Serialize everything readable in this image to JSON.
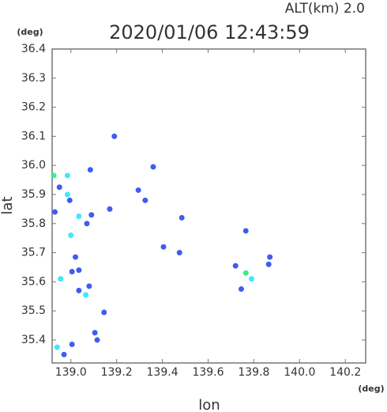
{
  "chart_data": {
    "type": "scatter",
    "title": "2020/01/06 12:43:59",
    "annotation": "ALT(km) 2.0",
    "x_unit": "(deg)",
    "y_unit": "(deg)",
    "x_label": "lon",
    "y_label": "lat",
    "xlim": [
      138.918,
      140.289
    ],
    "ylim": [
      35.321,
      36.4
    ],
    "xticks": [
      {
        "value": 139.0,
        "label": "139.0"
      },
      139.2,
      139.4,
      139.6,
      139.8,
      {
        "value": 140.0,
        "label": "140.0"
      },
      140.2
    ],
    "yticks": [
      {
        "value": 35.4,
        "label": "35.4"
      },
      35.5,
      35.6,
      35.7,
      35.8,
      35.9,
      {
        "value": 36.0,
        "label": "36.0"
      },
      36.1,
      36.2,
      36.3,
      36.4
    ],
    "series": [
      {
        "color": "#3f5cf0",
        "x": [
          139.19,
          139.36,
          139.085,
          138.95,
          138.995,
          138.93,
          139.09,
          139.17,
          139.07,
          139.295,
          139.325,
          139.485,
          139.405,
          139.02,
          139.005,
          139.035,
          139.08,
          139.035,
          139.145,
          139.105,
          139.115,
          139.005,
          138.97,
          139.765,
          139.865,
          139.87,
          139.72,
          139.745,
          139.475
        ],
        "y": [
          36.1,
          35.995,
          35.985,
          35.925,
          35.88,
          35.84,
          35.83,
          35.85,
          35.8,
          35.915,
          35.88,
          35.82,
          35.72,
          35.685,
          35.635,
          35.64,
          35.585,
          35.57,
          35.495,
          35.425,
          35.4,
          35.385,
          35.35,
          35.775,
          35.66,
          35.685,
          35.655,
          35.575,
          35.7
        ]
      },
      {
        "color": "#3fe8ff",
        "x": [
          138.985,
          138.985,
          139.035,
          139.0,
          138.955,
          139.065,
          138.94,
          139.79
        ],
        "y": [
          35.965,
          35.9,
          35.825,
          35.76,
          35.61,
          35.555,
          35.375,
          35.61
        ]
      },
      {
        "color": "#3aee88",
        "x": [
          138.925,
          139.765
        ],
        "y": [
          35.965,
          35.63
        ]
      }
    ]
  }
}
